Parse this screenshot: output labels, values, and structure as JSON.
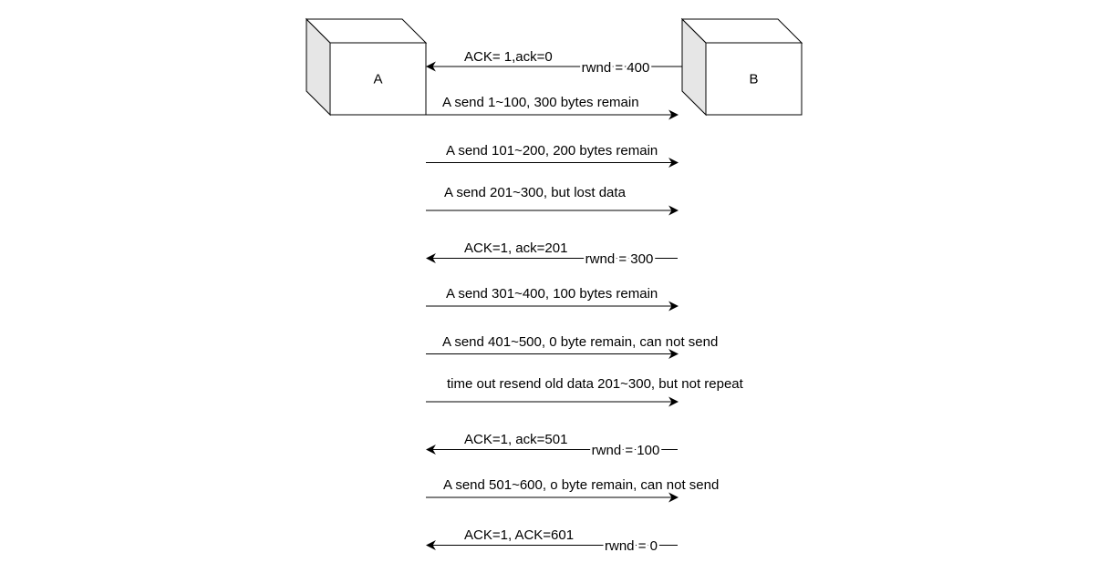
{
  "nodes": {
    "a": {
      "label": "A"
    },
    "b": {
      "label": "B"
    }
  },
  "messages": [
    {
      "direction": "B-to-A",
      "label": "ACK= 1,ack=0",
      "window": "rwnd = 400"
    },
    {
      "direction": "A-to-B",
      "label": "A send 1~100, 300 bytes remain",
      "window": ""
    },
    {
      "direction": "A-to-B",
      "label": "A send 101~200, 200 bytes remain",
      "window": ""
    },
    {
      "direction": "A-to-B",
      "label": "A send 201~300, but lost data",
      "window": ""
    },
    {
      "direction": "B-to-A",
      "label": "ACK=1, ack=201",
      "window": "rwnd = 300"
    },
    {
      "direction": "A-to-B",
      "label": "A send 301~400, 100 bytes remain",
      "window": ""
    },
    {
      "direction": "A-to-B",
      "label": "A send 401~500, 0 byte remain, can not send",
      "window": ""
    },
    {
      "direction": "A-to-B",
      "label": "time out resend old data 201~300, but not repeat",
      "window": ""
    },
    {
      "direction": "B-to-A",
      "label": "ACK=1, ack=501",
      "window": "rwnd = 100"
    },
    {
      "direction": "A-to-B",
      "label": "A send 501~600, o byte remain, can not send",
      "window": ""
    },
    {
      "direction": "B-to-A",
      "label": "ACK=1, ACK=601",
      "window": "rwnd = 0"
    }
  ],
  "colors": {
    "stroke": "#000000",
    "box_front": "#ffffff",
    "box_side": "#e6e6e6",
    "background": "#ffffff"
  }
}
